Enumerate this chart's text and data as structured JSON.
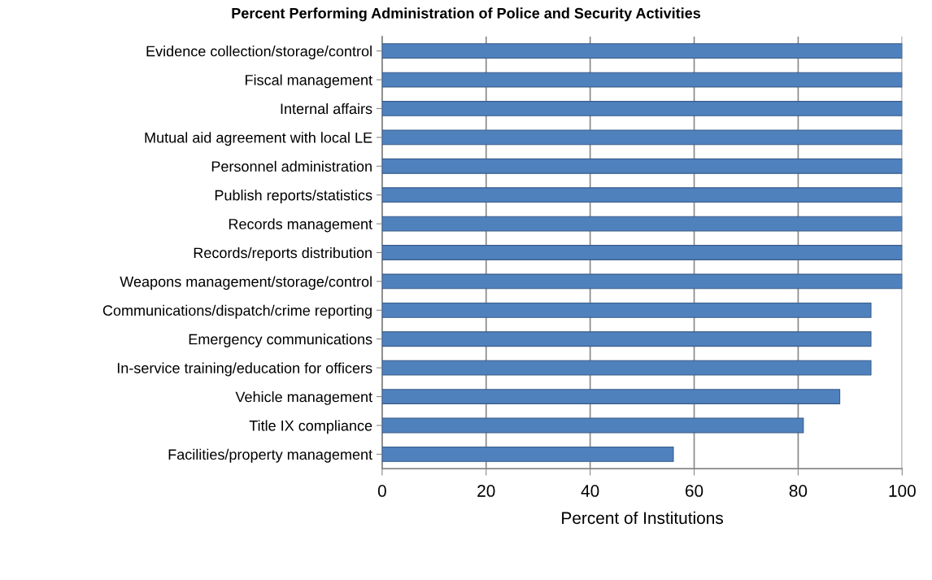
{
  "chart_data": {
    "type": "bar",
    "orientation": "horizontal",
    "title": "Percent Performing Administration of Police and Security Activities",
    "xlabel": "Percent of Institutions",
    "categories": [
      "Evidence collection/storage/control",
      "Fiscal management",
      "Internal affairs",
      "Mutual aid agreement with local LE",
      "Personnel administration",
      "Publish reports/statistics",
      "Records management",
      "Records/reports distribution",
      "Weapons management/storage/control",
      "Communications/dispatch/crime reporting",
      "Emergency communications",
      "In-service training/education for officers",
      "Vehicle management",
      "Title IX compliance",
      "Facilities/property management"
    ],
    "values": [
      100,
      100,
      100,
      100,
      100,
      100,
      100,
      100,
      100,
      94,
      94,
      94,
      88,
      81,
      56
    ],
    "color": "#4f81bd",
    "xlim": [
      0,
      100
    ],
    "xticks": [
      0,
      20,
      40,
      60,
      80,
      100
    ],
    "grid": "x",
    "legend": false
  }
}
